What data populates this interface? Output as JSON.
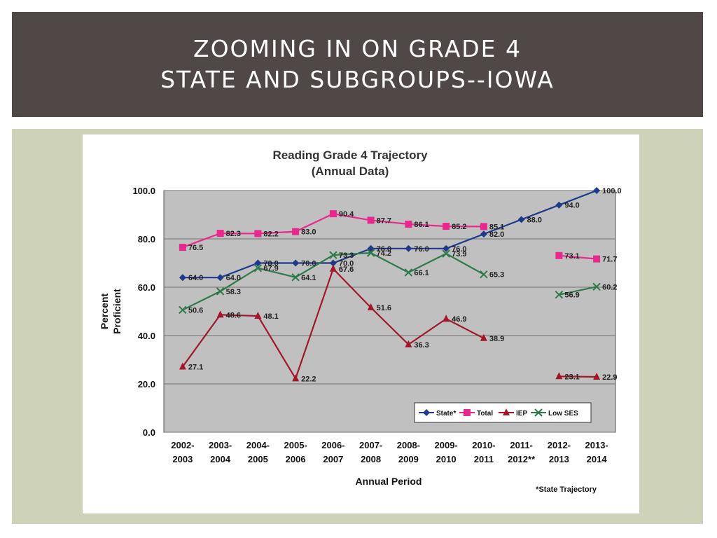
{
  "slide": {
    "title_line1": "ZOOMING IN ON GRADE 4",
    "title_line2": "STATE AND SUBGROUPS--IOWA",
    "colors": {
      "title_bg": "#504847",
      "panel_bg": "#cdd2b8",
      "plot_bg": "#c0c0c0"
    }
  },
  "chart_data": {
    "type": "line",
    "title": "Reading Grade 4 Trajectory",
    "subtitle": "(Annual Data)",
    "xlabel": "Annual Period",
    "ylabel": "Percent Proficient",
    "ylim": [
      0,
      100
    ],
    "yticks": [
      "0.0",
      "20.0",
      "40.0",
      "60.0",
      "80.0",
      "100.0"
    ],
    "categories": [
      [
        "2002-",
        "2003"
      ],
      [
        "2003-",
        "2004"
      ],
      [
        "2004-",
        "2005"
      ],
      [
        "2005-",
        "2006"
      ],
      [
        "2006-",
        "2007"
      ],
      [
        "2007-",
        "2008"
      ],
      [
        "2008-",
        "2009"
      ],
      [
        "2009-",
        "2010"
      ],
      [
        "2010-",
        "2011"
      ],
      [
        "2011-",
        "2012**"
      ],
      [
        "2012-",
        "2013"
      ],
      [
        "2013-",
        "2014"
      ]
    ],
    "grid": true,
    "legend": "bottom-right",
    "footnote": "*State Trajectory",
    "series": [
      {
        "name": "State*",
        "color": "#1f3a8a",
        "marker": "diamond",
        "values": [
          64.0,
          64.0,
          70.0,
          70.0,
          70.0,
          76.0,
          76.0,
          76.0,
          82.0,
          88.0,
          94.0,
          100.0
        ],
        "labels": [
          "64.0",
          "64.0",
          "70.0",
          "70.0",
          "70.0",
          "76.0",
          "76.0",
          "76.0",
          "82.0",
          "88.0",
          "94.0",
          "100.0"
        ]
      },
      {
        "name": "Total",
        "color": "#e8288a",
        "marker": "square",
        "values": [
          76.5,
          82.3,
          82.2,
          83.0,
          90.4,
          87.7,
          86.1,
          85.2,
          85.1,
          null,
          73.1,
          71.7
        ],
        "labels": [
          "76.5",
          "82.3",
          "82.2",
          "83.0",
          "90.4",
          "87.7",
          "86.1",
          "85.2",
          "85.1",
          null,
          "73.1",
          "71.7"
        ]
      },
      {
        "name": "IEP",
        "color": "#a3162a",
        "marker": "triangle",
        "values": [
          27.1,
          48.6,
          48.1,
          22.2,
          67.6,
          51.6,
          36.3,
          46.9,
          38.9,
          null,
          23.1,
          22.9
        ],
        "labels": [
          "27.1",
          "48.6",
          "48.1",
          "22.2",
          "67.6",
          "51.6",
          "36.3",
          "46.9",
          "38.9",
          null,
          "23.1",
          "22.9"
        ]
      },
      {
        "name": "Low SES",
        "color": "#2e7a4a",
        "marker": "x",
        "values": [
          50.6,
          58.3,
          67.9,
          64.1,
          73.3,
          74.2,
          66.1,
          73.9,
          65.3,
          null,
          56.9,
          60.2
        ],
        "labels": [
          "50.6",
          "58.3",
          "67.9",
          "64.1",
          "73.3",
          "74.2",
          "66.1",
          "73.9",
          "65.3",
          null,
          "56.9",
          "60.2"
        ]
      }
    ]
  }
}
